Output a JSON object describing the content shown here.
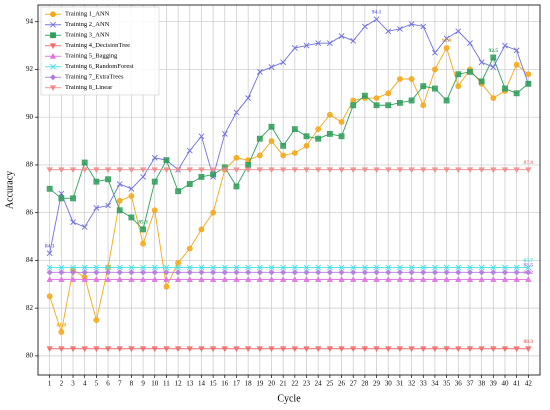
{
  "chart_data": {
    "type": "line",
    "xlabel": "Cycle",
    "ylabel": "Accuracy",
    "x": [
      1,
      2,
      3,
      4,
      5,
      6,
      7,
      8,
      9,
      10,
      11,
      12,
      13,
      14,
      15,
      16,
      17,
      18,
      19,
      20,
      21,
      22,
      23,
      24,
      25,
      26,
      27,
      28,
      29,
      30,
      31,
      32,
      33,
      34,
      35,
      36,
      37,
      38,
      39,
      40,
      41,
      42
    ],
    "xlim": [
      0,
      43
    ],
    "xticks": [
      1,
      2,
      3,
      4,
      5,
      6,
      7,
      8,
      9,
      10,
      11,
      12,
      13,
      14,
      15,
      16,
      17,
      18,
      19,
      20,
      21,
      22,
      23,
      24,
      25,
      26,
      27,
      28,
      29,
      30,
      31,
      32,
      33,
      34,
      35,
      36,
      37,
      38,
      39,
      40,
      41,
      42
    ],
    "ylim": [
      79.2,
      94.7
    ],
    "yticks": [
      80,
      82,
      84,
      86,
      88,
      90,
      92,
      94
    ],
    "grid": true,
    "legend": "upper left",
    "series": [
      {
        "name": "Training 1_ANN",
        "color": "#f5a716",
        "marker": "circle",
        "values": [
          82.5,
          81.0,
          83.6,
          83.3,
          81.5,
          83.7,
          86.5,
          86.7,
          84.7,
          86.1,
          82.9,
          83.9,
          84.5,
          85.3,
          86.0,
          87.8,
          88.3,
          88.2,
          88.4,
          89.0,
          88.4,
          88.5,
          88.8,
          89.5,
          90.1,
          89.8,
          90.7,
          90.8,
          90.8,
          91.0,
          91.6,
          91.6,
          90.5,
          92.0,
          92.9,
          91.3,
          92.0,
          91.4,
          90.8,
          91.1,
          92.2,
          91.8
        ],
        "value_labels": [
          null,
          "81.0",
          null,
          null,
          null,
          null,
          null,
          null,
          null,
          null,
          null,
          null,
          null,
          null,
          null,
          null,
          null,
          null,
          null,
          null,
          null,
          null,
          null,
          null,
          null,
          null,
          null,
          null,
          null,
          null,
          null,
          null,
          null,
          null,
          "92.9",
          null,
          null,
          null,
          null,
          null,
          null,
          null
        ]
      },
      {
        "name": "Training 2_ANN",
        "color": "#6f6fe0",
        "marker": "x",
        "values": [
          84.3,
          86.8,
          85.6,
          85.4,
          86.2,
          86.3,
          87.2,
          87.0,
          87.5,
          88.3,
          88.2,
          87.8,
          88.6,
          89.2,
          87.5,
          89.3,
          90.2,
          90.8,
          91.9,
          92.1,
          92.3,
          92.9,
          93.0,
          93.1,
          93.1,
          93.4,
          93.2,
          93.8,
          94.1,
          93.6,
          93.7,
          93.9,
          93.8,
          92.7,
          93.3,
          93.6,
          93.1,
          92.3,
          92.1,
          93.0,
          92.8,
          91.4
        ],
        "value_labels": [
          "84.3",
          null,
          null,
          null,
          null,
          null,
          null,
          null,
          null,
          null,
          null,
          null,
          null,
          null,
          null,
          null,
          null,
          null,
          null,
          null,
          null,
          null,
          null,
          null,
          null,
          null,
          null,
          null,
          "94.1",
          null,
          null,
          null,
          null,
          null,
          null,
          null,
          null,
          null,
          null,
          null,
          null,
          null
        ]
      },
      {
        "name": "Training 3_ANN",
        "color": "#2f9e5a",
        "marker": "square",
        "values": [
          87.0,
          86.6,
          86.6,
          88.1,
          87.3,
          87.4,
          86.1,
          85.8,
          85.3,
          87.3,
          88.2,
          86.9,
          87.2,
          87.5,
          87.6,
          87.9,
          87.1,
          88.0,
          89.1,
          89.6,
          88.8,
          89.5,
          89.2,
          89.1,
          89.3,
          89.2,
          90.5,
          90.9,
          90.5,
          90.5,
          90.6,
          90.7,
          91.3,
          91.2,
          90.7,
          91.8,
          91.9,
          91.5,
          92.5,
          91.2,
          91.0,
          91.4
        ],
        "value_labels": [
          null,
          null,
          null,
          null,
          null,
          null,
          null,
          null,
          "85.3",
          null,
          null,
          null,
          null,
          null,
          null,
          null,
          null,
          null,
          null,
          null,
          null,
          null,
          null,
          null,
          null,
          null,
          null,
          null,
          null,
          null,
          null,
          null,
          null,
          null,
          null,
          null,
          null,
          null,
          "92.5",
          null,
          null,
          null
        ]
      },
      {
        "name": "Training 4_DecisionTree",
        "color": "#f06a6a",
        "marker": "tri-down",
        "values": [
          80.3,
          80.3,
          80.3,
          80.3,
          80.3,
          80.3,
          80.3,
          80.3,
          80.3,
          80.3,
          80.3,
          80.3,
          80.3,
          80.3,
          80.3,
          80.3,
          80.3,
          80.3,
          80.3,
          80.3,
          80.3,
          80.3,
          80.3,
          80.3,
          80.3,
          80.3,
          80.3,
          80.3,
          80.3,
          80.3,
          80.3,
          80.3,
          80.3,
          80.3,
          80.3,
          80.3,
          80.3,
          80.3,
          80.3,
          80.3,
          80.3,
          80.3
        ],
        "value_labels": [
          null,
          null,
          null,
          null,
          null,
          null,
          null,
          null,
          null,
          null,
          null,
          null,
          null,
          null,
          null,
          null,
          null,
          null,
          null,
          null,
          null,
          null,
          null,
          null,
          null,
          null,
          null,
          null,
          null,
          null,
          null,
          null,
          null,
          null,
          null,
          null,
          null,
          null,
          null,
          null,
          null,
          "80.3"
        ]
      },
      {
        "name": "Training 5_Bagging",
        "color": "#e070e0",
        "marker": "tri-up",
        "values": [
          83.2,
          83.2,
          83.2,
          83.2,
          83.2,
          83.2,
          83.2,
          83.2,
          83.2,
          83.2,
          83.2,
          83.2,
          83.2,
          83.2,
          83.2,
          83.2,
          83.2,
          83.2,
          83.2,
          83.2,
          83.2,
          83.2,
          83.2,
          83.2,
          83.2,
          83.2,
          83.2,
          83.2,
          83.2,
          83.2,
          83.2,
          83.2,
          83.2,
          83.2,
          83.2,
          83.2,
          83.2,
          83.2,
          83.2,
          83.2,
          83.2,
          83.2
        ],
        "value_labels": [
          null,
          null,
          null,
          null,
          null,
          null,
          null,
          null,
          null,
          null,
          null,
          null,
          null,
          null,
          null,
          null,
          null,
          null,
          null,
          null,
          null,
          null,
          null,
          null,
          null,
          null,
          null,
          null,
          null,
          null,
          null,
          null,
          null,
          null,
          null,
          null,
          null,
          null,
          null,
          null,
          null,
          "83.2"
        ]
      },
      {
        "name": "Training 6_RandomForest",
        "color": "#3fe0e8",
        "marker": "x",
        "values": [
          83.7,
          83.7,
          83.7,
          83.7,
          83.7,
          83.7,
          83.7,
          83.7,
          83.7,
          83.7,
          83.7,
          83.7,
          83.7,
          83.7,
          83.7,
          83.7,
          83.7,
          83.7,
          83.7,
          83.7,
          83.7,
          83.7,
          83.7,
          83.7,
          83.7,
          83.7,
          83.7,
          83.7,
          83.7,
          83.7,
          83.7,
          83.7,
          83.7,
          83.7,
          83.7,
          83.7,
          83.7,
          83.7,
          83.7,
          83.7,
          83.7,
          83.7
        ],
        "value_labels": [
          null,
          null,
          null,
          null,
          null,
          null,
          null,
          null,
          null,
          null,
          null,
          null,
          null,
          null,
          null,
          null,
          null,
          null,
          null,
          null,
          null,
          null,
          null,
          null,
          null,
          null,
          null,
          null,
          null,
          null,
          null,
          null,
          null,
          null,
          null,
          null,
          null,
          null,
          null,
          null,
          null,
          "83.7"
        ]
      },
      {
        "name": "Training 7_ExtraTrees",
        "color": "#b07ae0",
        "marker": "diamond",
        "values": [
          83.5,
          83.5,
          83.5,
          83.5,
          83.5,
          83.5,
          83.5,
          83.5,
          83.5,
          83.5,
          83.5,
          83.5,
          83.5,
          83.5,
          83.5,
          83.5,
          83.5,
          83.5,
          83.5,
          83.5,
          83.5,
          83.5,
          83.5,
          83.5,
          83.5,
          83.5,
          83.5,
          83.5,
          83.5,
          83.5,
          83.5,
          83.5,
          83.5,
          83.5,
          83.5,
          83.5,
          83.5,
          83.5,
          83.5,
          83.5,
          83.5,
          83.5
        ],
        "value_labels": [
          null,
          null,
          null,
          null,
          null,
          null,
          null,
          null,
          null,
          null,
          null,
          null,
          null,
          null,
          null,
          null,
          null,
          null,
          null,
          null,
          null,
          null,
          null,
          null,
          null,
          null,
          null,
          null,
          null,
          null,
          null,
          null,
          null,
          null,
          null,
          null,
          null,
          null,
          null,
          null,
          null,
          "83.5"
        ]
      },
      {
        "name": "Training 8_Linear",
        "color": "#f08a8a",
        "marker": "tri-down",
        "values": [
          87.8,
          87.8,
          87.8,
          87.8,
          87.8,
          87.8,
          87.8,
          87.8,
          87.8,
          87.8,
          87.8,
          87.8,
          87.8,
          87.8,
          87.8,
          87.8,
          87.8,
          87.8,
          87.8,
          87.8,
          87.8,
          87.8,
          87.8,
          87.8,
          87.8,
          87.8,
          87.8,
          87.8,
          87.8,
          87.8,
          87.8,
          87.8,
          87.8,
          87.8,
          87.8,
          87.8,
          87.8,
          87.8,
          87.8,
          87.8,
          87.8,
          87.8
        ],
        "value_labels": [
          null,
          null,
          null,
          null,
          null,
          null,
          null,
          null,
          null,
          null,
          null,
          null,
          null,
          null,
          null,
          null,
          null,
          null,
          null,
          null,
          null,
          null,
          null,
          null,
          null,
          null,
          null,
          null,
          null,
          null,
          null,
          null,
          null,
          null,
          null,
          null,
          null,
          null,
          null,
          null,
          null,
          "87.8"
        ]
      }
    ]
  }
}
